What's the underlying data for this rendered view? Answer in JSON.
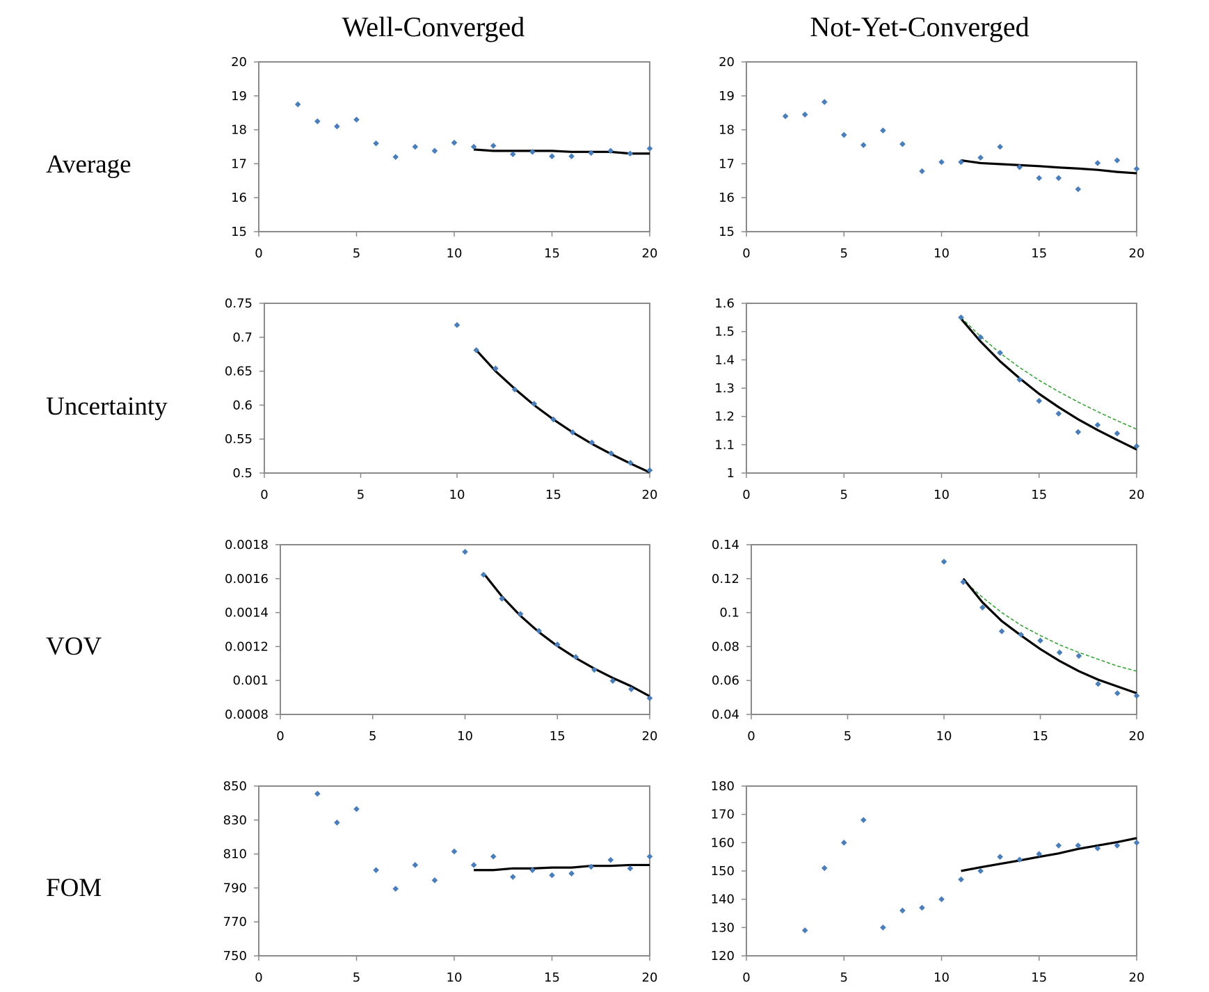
{
  "figure": {
    "columns": [
      "Well-Converged",
      "Not-Yet-Converged"
    ],
    "rows": [
      "Average",
      "Uncertainty",
      "VOV",
      "FOM"
    ],
    "colors": {
      "points": "#4a7ebb",
      "fit": "#000000",
      "reference": "#2ca02c",
      "axis": "#8a8a8a"
    }
  },
  "chart_data": [
    {
      "id": "avg-well",
      "type": "scatter",
      "row": "Average",
      "column": "Well-Converged",
      "xlim": [
        0,
        20
      ],
      "xticks": [
        0,
        5,
        10,
        15,
        20
      ],
      "ylim": [
        15,
        20
      ],
      "yticks": [
        15,
        16,
        17,
        18,
        19,
        20
      ],
      "ytick_labels": [
        "15",
        "16",
        "17",
        "18",
        "19",
        "20"
      ],
      "points": {
        "x": [
          2,
          3,
          4,
          5,
          6,
          7,
          8,
          9,
          10,
          11,
          12,
          13,
          14,
          15,
          16,
          17,
          18,
          19,
          20
        ],
        "y": [
          18.75,
          18.25,
          18.1,
          18.3,
          17.6,
          17.2,
          17.5,
          17.38,
          17.62,
          17.5,
          17.53,
          17.28,
          17.35,
          17.22,
          17.22,
          17.32,
          17.38,
          17.3,
          17.45
        ]
      },
      "fit": {
        "x": [
          11,
          12,
          13,
          14,
          15,
          16,
          17,
          18,
          19,
          20
        ],
        "y": [
          17.42,
          17.38,
          17.38,
          17.38,
          17.38,
          17.35,
          17.35,
          17.35,
          17.3,
          17.3
        ]
      }
    },
    {
      "id": "avg-not",
      "type": "scatter",
      "row": "Average",
      "column": "Not-Yet-Converged",
      "xlim": [
        0,
        20
      ],
      "xticks": [
        0,
        5,
        10,
        15,
        20
      ],
      "ylim": [
        15,
        20
      ],
      "yticks": [
        15,
        16,
        17,
        18,
        19,
        20
      ],
      "ytick_labels": [
        "15",
        "16",
        "17",
        "18",
        "19",
        "20"
      ],
      "points": {
        "x": [
          2,
          3,
          4,
          5,
          6,
          7,
          8,
          9,
          10,
          11,
          12,
          13,
          14,
          15,
          16,
          17,
          18,
          19,
          20
        ],
        "y": [
          18.4,
          18.45,
          18.82,
          17.85,
          17.55,
          17.98,
          17.58,
          16.78,
          17.05,
          17.05,
          17.18,
          17.5,
          16.9,
          16.58,
          16.58,
          16.25,
          17.02,
          17.1,
          16.85
        ]
      },
      "fit": {
        "x": [
          11,
          12,
          13,
          14,
          15,
          16,
          17,
          18,
          19,
          20
        ],
        "y": [
          17.1,
          17.02,
          16.99,
          16.96,
          16.93,
          16.89,
          16.86,
          16.82,
          16.76,
          16.72
        ]
      }
    },
    {
      "id": "unc-well",
      "type": "scatter",
      "row": "Uncertainty",
      "column": "Well-Converged",
      "xlim": [
        0,
        20
      ],
      "xticks": [
        0,
        5,
        10,
        15,
        20
      ],
      "ylim": [
        0.5,
        0.75
      ],
      "yticks": [
        0.5,
        0.55,
        0.6,
        0.65,
        0.7,
        0.75
      ],
      "ytick_labels": [
        "0.5",
        "0.55",
        "0.6",
        "0.65",
        "0.7",
        "0.75"
      ],
      "points": {
        "x": [
          10,
          11,
          12,
          13,
          14,
          15,
          16,
          17,
          18,
          19,
          20
        ],
        "y": [
          0.718,
          0.681,
          0.654,
          0.623,
          0.602,
          0.579,
          0.56,
          0.545,
          0.529,
          0.515,
          0.504
        ]
      },
      "fit": {
        "x": [
          11,
          12,
          13,
          14,
          15,
          16,
          17,
          18,
          19,
          20
        ],
        "y": [
          0.681,
          0.65,
          0.624,
          0.6,
          0.579,
          0.56,
          0.543,
          0.528,
          0.514,
          0.501
        ]
      }
    },
    {
      "id": "unc-not",
      "type": "scatter",
      "row": "Uncertainty",
      "column": "Not-Yet-Converged",
      "xlim": [
        0,
        20
      ],
      "xticks": [
        0,
        5,
        10,
        15,
        20
      ],
      "ylim": [
        1,
        1.6
      ],
      "yticks": [
        1,
        1.1,
        1.2,
        1.3,
        1.4,
        1.5,
        1.6
      ],
      "ytick_labels": [
        "1",
        "1.1",
        "1.2",
        "1.3",
        "1.4",
        "1.5",
        "1.6"
      ],
      "points": {
        "x": [
          11,
          12,
          13,
          14,
          15,
          16,
          17,
          18,
          19,
          20
        ],
        "y": [
          1.55,
          1.48,
          1.425,
          1.33,
          1.255,
          1.21,
          1.145,
          1.17,
          1.14,
          1.095
        ]
      },
      "fit": {
        "x": [
          11,
          12,
          13,
          14,
          15,
          16,
          17,
          18,
          19,
          20
        ],
        "y": [
          1.545,
          1.465,
          1.395,
          1.335,
          1.28,
          1.233,
          1.19,
          1.152,
          1.117,
          1.083
        ]
      },
      "reference": {
        "x": [
          11,
          12,
          13,
          14,
          15,
          16,
          17,
          18,
          19,
          20
        ],
        "y": [
          1.55,
          1.483,
          1.424,
          1.373,
          1.328,
          1.288,
          1.251,
          1.217,
          1.185,
          1.155
        ]
      }
    },
    {
      "id": "vov-well",
      "type": "scatter",
      "row": "VOV",
      "column": "Well-Converged",
      "xlim": [
        0,
        20
      ],
      "xticks": [
        0,
        5,
        10,
        15,
        20
      ],
      "ylim": [
        0.0008,
        0.0018
      ],
      "yticks": [
        0.0008,
        0.001,
        0.0012,
        0.0014,
        0.0016,
        0.0018
      ],
      "ytick_labels": [
        "0.0008",
        "0.001",
        "0.0012",
        "0.0014",
        "0.0016",
        "0.0018"
      ],
      "points": {
        "x": [
          10,
          11,
          12,
          13,
          14,
          15,
          16,
          17,
          18,
          19,
          20
        ],
        "y": [
          0.001758,
          0.001623,
          0.001482,
          0.001392,
          0.001292,
          0.001212,
          0.001138,
          0.001063,
          0.000998,
          0.000949,
          0.000896
        ]
      },
      "fit": {
        "x": [
          11,
          12,
          13,
          14,
          15,
          16,
          17,
          18,
          19,
          20
        ],
        "y": [
          0.001632,
          0.001495,
          0.001381,
          0.001285,
          0.001203,
          0.001132,
          0.00107,
          0.001015,
          0.000966,
          0.000907
        ]
      }
    },
    {
      "id": "vov-not",
      "type": "scatter",
      "row": "VOV",
      "column": "Not-Yet-Converged",
      "xlim": [
        0,
        20
      ],
      "xticks": [
        0,
        5,
        10,
        15,
        20
      ],
      "ylim": [
        0.04,
        0.14
      ],
      "yticks": [
        0.04,
        0.06,
        0.08,
        0.1,
        0.12,
        0.14
      ],
      "ytick_labels": [
        "0.04",
        "0.06",
        "0.08",
        "0.1",
        "0.12",
        "0.14"
      ],
      "points": {
        "x": [
          10,
          11,
          12,
          13,
          14,
          15,
          16,
          17,
          18,
          19,
          20
        ],
        "y": [
          0.13,
          0.118,
          0.103,
          0.089,
          0.087,
          0.0835,
          0.0765,
          0.0745,
          0.058,
          0.0525,
          0.051
        ]
      },
      "fit": {
        "x": [
          11,
          12,
          13,
          14,
          15,
          16,
          17,
          18,
          19,
          20
        ],
        "y": [
          0.12,
          0.106,
          0.095,
          0.0865,
          0.0785,
          0.0715,
          0.0655,
          0.0605,
          0.0565,
          0.0525
        ]
      },
      "reference": {
        "x": [
          11,
          12,
          13,
          14,
          15,
          16,
          17,
          18,
          19,
          20
        ],
        "y": [
          0.119,
          0.109,
          0.1,
          0.0925,
          0.0865,
          0.081,
          0.0765,
          0.0725,
          0.0685,
          0.0655
        ]
      }
    },
    {
      "id": "fom-well",
      "type": "scatter",
      "row": "FOM",
      "column": "Well-Converged",
      "xlim": [
        0,
        20
      ],
      "xticks": [
        0,
        5,
        10,
        15,
        20
      ],
      "ylim": [
        750,
        850
      ],
      "yticks": [
        750,
        770,
        790,
        810,
        830,
        850
      ],
      "ytick_labels": [
        "750",
        "770",
        "790",
        "810",
        "830",
        "850"
      ],
      "points": {
        "x": [
          3,
          4,
          5,
          6,
          7,
          8,
          9,
          10,
          11,
          12,
          13,
          14,
          15,
          16,
          17,
          18,
          19,
          20
        ],
        "y": [
          845.5,
          828.5,
          836.5,
          800.5,
          789.5,
          803.5,
          794.5,
          811.5,
          803.5,
          808.5,
          796.5,
          800.5,
          797.5,
          798.5,
          802.5,
          806.5,
          801.5,
          808.5
        ]
      },
      "fit": {
        "x": [
          11,
          12,
          13,
          14,
          15,
          16,
          17,
          18,
          19,
          20
        ],
        "y": [
          800.5,
          800.5,
          801.5,
          801.5,
          802,
          802,
          803,
          803,
          803.5,
          803.5
        ]
      }
    },
    {
      "id": "fom-not",
      "type": "scatter",
      "row": "FOM",
      "column": "Not-Yet-Converged",
      "xlim": [
        0,
        20
      ],
      "xticks": [
        0,
        5,
        10,
        15,
        20
      ],
      "ylim": [
        120,
        180
      ],
      "yticks": [
        120,
        130,
        140,
        150,
        160,
        170,
        180
      ],
      "ytick_labels": [
        "120",
        "130",
        "140",
        "150",
        "160",
        "170",
        "180"
      ],
      "points": {
        "x": [
          3,
          4,
          5,
          6,
          7,
          8,
          9,
          10,
          11,
          12,
          13,
          14,
          15,
          16,
          17,
          18,
          19,
          20
        ],
        "y": [
          129,
          151,
          160,
          168,
          130,
          136,
          137,
          140,
          147,
          150,
          155,
          154,
          156,
          159,
          159,
          158,
          159,
          160
        ]
      },
      "fit": {
        "x": [
          11,
          12,
          13,
          14,
          15,
          16,
          17,
          18,
          19,
          20
        ],
        "y": [
          150,
          151.3,
          152.5,
          153.7,
          155,
          156.2,
          157.8,
          159,
          160.2,
          161.6
        ]
      }
    }
  ]
}
